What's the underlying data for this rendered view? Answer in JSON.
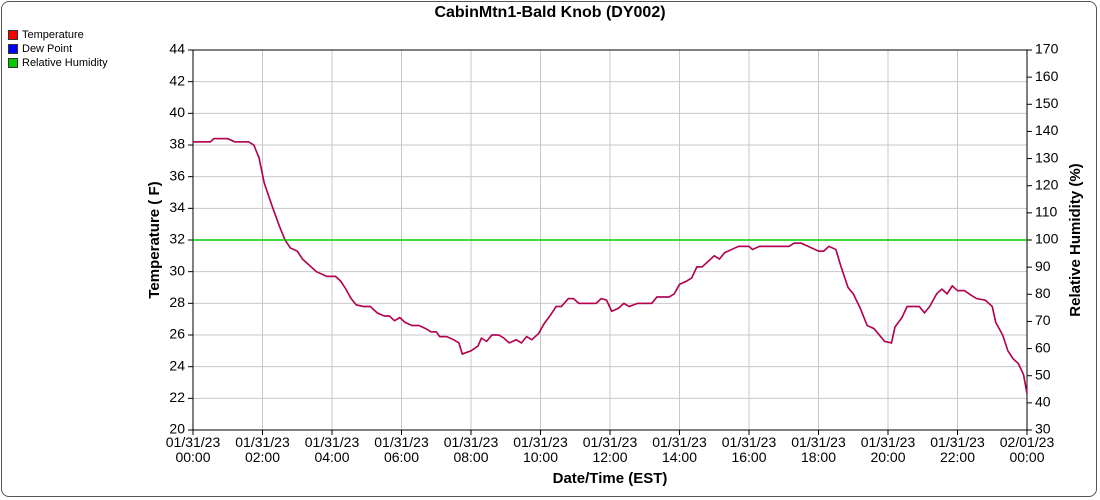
{
  "chart_data": {
    "type": "line",
    "title": "CabinMtn1-Bald Knob (DY002)",
    "x_label": "Date/Time (EST)",
    "y_label": "Temperature ( F)",
    "y2_label": "Relative Humidity (%)",
    "grid": true,
    "legend": "top-left",
    "x": [
      0,
      0.5,
      0.6,
      1.0,
      1.2,
      1.6,
      1.75,
      1.9,
      2.05,
      2.3,
      2.5,
      2.65,
      2.8,
      3.0,
      3.15,
      3.4,
      3.55,
      3.85,
      4.1,
      4.25,
      4.4,
      4.55,
      4.7,
      4.9,
      5.1,
      5.3,
      5.5,
      5.65,
      5.8,
      5.95,
      6.1,
      6.3,
      6.5,
      6.7,
      6.85,
      7.0,
      7.1,
      7.3,
      7.5,
      7.65,
      7.75,
      8.0,
      8.2,
      8.3,
      8.45,
      8.6,
      8.8,
      8.95,
      9.1,
      9.3,
      9.45,
      9.6,
      9.75,
      9.95,
      10.1,
      10.3,
      10.45,
      10.6,
      10.8,
      10.95,
      11.1,
      11.4,
      11.6,
      11.75,
      11.9,
      12.05,
      12.25,
      12.4,
      12.55,
      12.8,
      13.0,
      13.2,
      13.35,
      13.7,
      13.85,
      14.0,
      14.2,
      14.35,
      14.5,
      14.65,
      14.8,
      15.0,
      15.15,
      15.3,
      15.5,
      15.7,
      16.0,
      16.1,
      16.3,
      16.6,
      17.0,
      17.15,
      17.3,
      17.5,
      17.7,
      17.9,
      18.0,
      18.15,
      18.3,
      18.5,
      18.65,
      18.85,
      19.0,
      19.2,
      19.4,
      19.6,
      19.75,
      19.9,
      20.1,
      20.2,
      20.4,
      20.55,
      20.9,
      21.05,
      21.2,
      21.4,
      21.55,
      21.7,
      21.85,
      22.0,
      22.2,
      22.4,
      22.55,
      22.8,
      23.0,
      23.1,
      23.3,
      23.45,
      23.6,
      23.75,
      23.9,
      24.0
    ],
    "series": [
      {
        "name": "Dew Point",
        "color": "#0000ff",
        "values": [
          38.2,
          38.2,
          38.4,
          38.4,
          38.2,
          38.2,
          38.0,
          37.2,
          35.6,
          34.0,
          32.8,
          32.0,
          31.5,
          31.3,
          30.8,
          30.3,
          30.0,
          29.7,
          29.7,
          29.4,
          28.9,
          28.3,
          27.9,
          27.8,
          27.8,
          27.4,
          27.2,
          27.2,
          26.9,
          27.1,
          26.8,
          26.6,
          26.6,
          26.4,
          26.2,
          26.2,
          25.9,
          25.9,
          25.7,
          25.5,
          24.8,
          25.0,
          25.3,
          25.8,
          25.6,
          26.0,
          26.0,
          25.8,
          25.5,
          25.7,
          25.5,
          25.9,
          25.7,
          26.1,
          26.7,
          27.3,
          27.8,
          27.8,
          28.3,
          28.3,
          28.0,
          28.0,
          28.0,
          28.3,
          28.2,
          27.5,
          27.7,
          28.0,
          27.8,
          28.0,
          28.0,
          28.0,
          28.4,
          28.4,
          28.6,
          29.2,
          29.4,
          29.6,
          30.3,
          30.3,
          30.6,
          31.0,
          30.8,
          31.2,
          31.4,
          31.6,
          31.6,
          31.4,
          31.6,
          31.6,
          31.6,
          31.6,
          31.8,
          31.8,
          31.6,
          31.4,
          31.3,
          31.3,
          31.6,
          31.4,
          30.3,
          29.0,
          28.6,
          27.7,
          26.6,
          26.4,
          26.0,
          25.6,
          25.5,
          26.5,
          27.1,
          27.8,
          27.8,
          27.4,
          27.8,
          28.6,
          28.9,
          28.6,
          29.1,
          28.8,
          28.8,
          28.5,
          28.3,
          28.2,
          27.8,
          26.8,
          26.0,
          25.0,
          24.5,
          24.2,
          23.5,
          22.3
        ]
      },
      {
        "name": "Temperature",
        "color": "#ff0000",
        "values": [
          38.2,
          38.2,
          38.4,
          38.4,
          38.2,
          38.2,
          38.0,
          37.2,
          35.6,
          34.0,
          32.8,
          32.0,
          31.5,
          31.3,
          30.8,
          30.3,
          30.0,
          29.7,
          29.7,
          29.4,
          28.9,
          28.3,
          27.9,
          27.8,
          27.8,
          27.4,
          27.2,
          27.2,
          26.9,
          27.1,
          26.8,
          26.6,
          26.6,
          26.4,
          26.2,
          26.2,
          25.9,
          25.9,
          25.7,
          25.5,
          24.8,
          25.0,
          25.3,
          25.8,
          25.6,
          26.0,
          26.0,
          25.8,
          25.5,
          25.7,
          25.5,
          25.9,
          25.7,
          26.1,
          26.7,
          27.3,
          27.8,
          27.8,
          28.3,
          28.3,
          28.0,
          28.0,
          28.0,
          28.3,
          28.2,
          27.5,
          27.7,
          28.0,
          27.8,
          28.0,
          28.0,
          28.0,
          28.4,
          28.4,
          28.6,
          29.2,
          29.4,
          29.6,
          30.3,
          30.3,
          30.6,
          31.0,
          30.8,
          31.2,
          31.4,
          31.6,
          31.6,
          31.4,
          31.6,
          31.6,
          31.6,
          31.6,
          31.8,
          31.8,
          31.6,
          31.4,
          31.3,
          31.3,
          31.6,
          31.4,
          30.3,
          29.0,
          28.6,
          27.7,
          26.6,
          26.4,
          26.0,
          25.6,
          25.5,
          26.5,
          27.1,
          27.8,
          27.8,
          27.4,
          27.8,
          28.6,
          28.9,
          28.6,
          29.1,
          28.8,
          28.8,
          28.5,
          28.3,
          28.2,
          27.8,
          26.8,
          26.0,
          25.0,
          24.5,
          24.2,
          23.5,
          22.3
        ]
      },
      {
        "name": "Relative Humidity",
        "color": "#00cc00",
        "axis": "y2",
        "x": [
          0,
          24
        ],
        "values": [
          100,
          100
        ]
      }
    ],
    "xlim": [
      0,
      24
    ],
    "xticks": [
      {
        "value": 0,
        "label": "01/31/23\n00:00"
      },
      {
        "value": 2,
        "label": "01/31/23\n02:00"
      },
      {
        "value": 4,
        "label": "01/31/23\n04:00"
      },
      {
        "value": 6,
        "label": "01/31/23\n06:00"
      },
      {
        "value": 8,
        "label": "01/31/23\n08:00"
      },
      {
        "value": 10,
        "label": "01/31/23\n10:00"
      },
      {
        "value": 12,
        "label": "01/31/23\n12:00"
      },
      {
        "value": 14,
        "label": "01/31/23\n14:00"
      },
      {
        "value": 16,
        "label": "01/31/23\n16:00"
      },
      {
        "value": 18,
        "label": "01/31/23\n18:00"
      },
      {
        "value": 20,
        "label": "01/31/23\n20:00"
      },
      {
        "value": 22,
        "label": "01/31/23\n22:00"
      },
      {
        "value": 24,
        "label": "02/01/23\n00:00"
      }
    ],
    "ylim": [
      20,
      44
    ],
    "yticks": [
      20,
      22,
      24,
      26,
      28,
      30,
      32,
      34,
      36,
      38,
      40,
      42,
      44
    ],
    "y2lim": [
      30,
      170
    ],
    "y2ticks": [
      30,
      40,
      50,
      60,
      70,
      80,
      90,
      100,
      110,
      120,
      130,
      140,
      150,
      160,
      170
    ]
  }
}
